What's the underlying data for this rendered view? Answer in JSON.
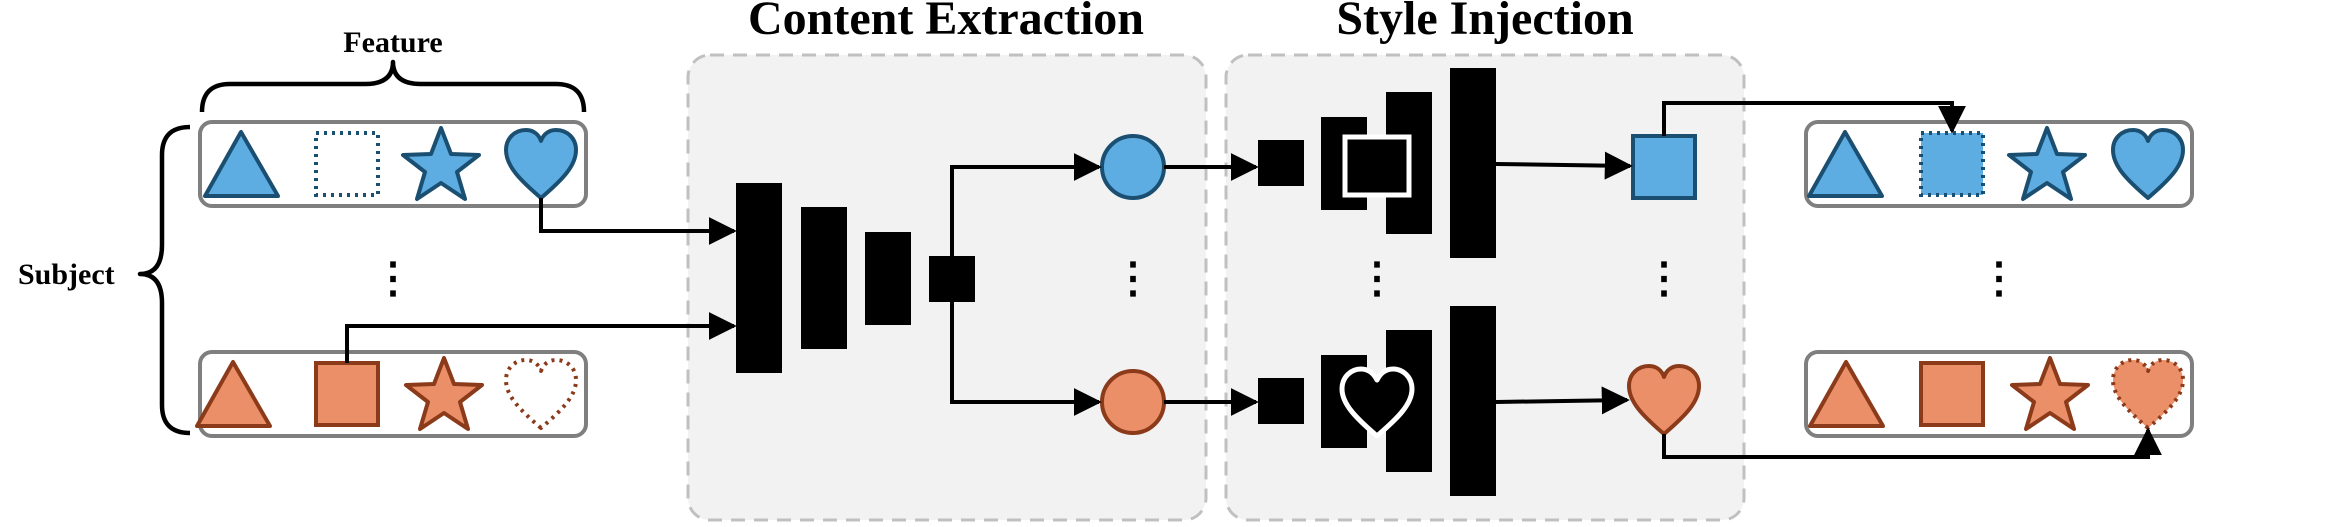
{
  "labels": {
    "feature": "Feature",
    "subject": "Subject",
    "content_extraction": "Content Extraction",
    "style_injection": "Style Injection"
  },
  "ellipsis": "⋮",
  "colors": {
    "blue_fill": "#5DADE2",
    "blue_stroke": "#1B4F72",
    "orange_fill": "#EB8F69",
    "orange_stroke": "#8B3A1A",
    "panel_fill": "#F2F2F2",
    "panel_stroke": "#C0C0C0",
    "row_stroke": "#7F7F7F",
    "block_fill": "#000000",
    "arrow": "#000000"
  },
  "input_rows": [
    {
      "color": "blue",
      "shapes": [
        {
          "icon": "triangle-icon",
          "style": "solid"
        },
        {
          "icon": "square-icon",
          "style": "dotted-empty"
        },
        {
          "icon": "star-icon",
          "style": "solid"
        },
        {
          "icon": "heart-icon",
          "style": "solid"
        }
      ]
    },
    {
      "color": "orange",
      "shapes": [
        {
          "icon": "triangle-icon",
          "style": "solid"
        },
        {
          "icon": "square-icon",
          "style": "solid"
        },
        {
          "icon": "star-icon",
          "style": "solid"
        },
        {
          "icon": "heart-icon",
          "style": "dotted-empty"
        }
      ]
    }
  ],
  "output_rows": [
    {
      "color": "blue",
      "shapes": [
        {
          "icon": "triangle-icon",
          "style": "solid"
        },
        {
          "icon": "square-icon",
          "style": "dotted-filled"
        },
        {
          "icon": "star-icon",
          "style": "solid"
        },
        {
          "icon": "heart-icon",
          "style": "solid"
        }
      ]
    },
    {
      "color": "orange",
      "shapes": [
        {
          "icon": "triangle-icon",
          "style": "solid"
        },
        {
          "icon": "square-icon",
          "style": "solid"
        },
        {
          "icon": "star-icon",
          "style": "solid"
        },
        {
          "icon": "heart-icon",
          "style": "dotted-filled"
        }
      ]
    }
  ],
  "content_outputs": [
    {
      "icon": "circle-icon",
      "color": "blue"
    },
    {
      "icon": "circle-icon",
      "color": "orange"
    }
  ],
  "style_outputs": [
    {
      "icon": "square-icon",
      "color": "blue"
    },
    {
      "icon": "heart-icon",
      "color": "orange"
    }
  ],
  "style_symbols": [
    "square-icon",
    "heart-icon"
  ]
}
